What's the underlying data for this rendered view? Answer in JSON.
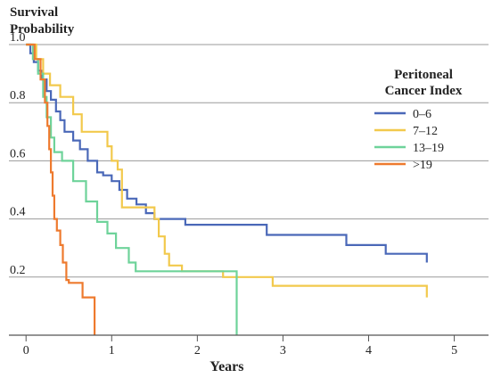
{
  "chart_data": {
    "type": "line",
    "step": true,
    "title_lines": [
      "Survival",
      "Probability"
    ],
    "xlabel": "Years",
    "ylabel": "",
    "xlim": [
      -0.2,
      5.4
    ],
    "ylim": [
      0,
      1.0
    ],
    "x_ticks": [
      0,
      1,
      2,
      3,
      4,
      5
    ],
    "x_tick_labels": [
      "0",
      "1",
      "2",
      "3",
      "4",
      "5"
    ],
    "y_ticks": [
      0.2,
      0.4,
      0.6,
      0.8,
      1.0
    ],
    "y_tick_labels": [
      "0.2",
      "0.4",
      "0.6",
      "0.8",
      "1.0"
    ],
    "grid": "horizontal",
    "legend": {
      "title_lines": [
        "Peritoneal",
        "Cancer Index"
      ],
      "placement": "right"
    },
    "series": [
      {
        "name": "0–6",
        "color": "#4a68b8",
        "x": [
          0,
          0.05,
          0.09,
          0.14,
          0.19,
          0.24,
          0.29,
          0.35,
          0.4,
          0.45,
          0.55,
          0.63,
          0.72,
          0.83,
          0.9,
          1.0,
          1.09,
          1.18,
          1.29,
          1.4,
          1.5,
          1.86,
          2.81,
          3.74,
          4.2,
          4.68
        ],
        "y": [
          1.0,
          0.97,
          0.94,
          0.91,
          0.88,
          0.84,
          0.81,
          0.77,
          0.74,
          0.7,
          0.67,
          0.64,
          0.6,
          0.56,
          0.55,
          0.53,
          0.5,
          0.47,
          0.45,
          0.42,
          0.4,
          0.38,
          0.345,
          0.31,
          0.28,
          0.25
        ]
      },
      {
        "name": "7–12",
        "color": "#f2c94c",
        "x": [
          0,
          0.12,
          0.2,
          0.28,
          0.4,
          0.55,
          0.65,
          0.95,
          1.0,
          1.07,
          1.12,
          1.5,
          1.55,
          1.62,
          1.67,
          1.82,
          2.3,
          2.88,
          4.68
        ],
        "y": [
          1.0,
          0.95,
          0.9,
          0.86,
          0.82,
          0.76,
          0.7,
          0.65,
          0.6,
          0.57,
          0.44,
          0.4,
          0.34,
          0.28,
          0.24,
          0.22,
          0.2,
          0.17,
          0.13
        ]
      },
      {
        "name": "13–19",
        "color": "#6ed39a",
        "x": [
          0,
          0.08,
          0.14,
          0.2,
          0.24,
          0.29,
          0.33,
          0.42,
          0.55,
          0.7,
          0.83,
          0.95,
          1.05,
          1.2,
          1.28,
          2.46
        ],
        "y": [
          1.0,
          0.95,
          0.9,
          0.82,
          0.75,
          0.68,
          0.63,
          0.6,
          0.53,
          0.46,
          0.39,
          0.35,
          0.3,
          0.25,
          0.22,
          0.0
        ]
      },
      {
        "name": ">19",
        "color": "#ee7a2e",
        "x": [
          0,
          0.1,
          0.17,
          0.22,
          0.25,
          0.27,
          0.29,
          0.31,
          0.33,
          0.36,
          0.4,
          0.43,
          0.47,
          0.5,
          0.66,
          0.8
        ],
        "y": [
          1.0,
          0.95,
          0.88,
          0.8,
          0.72,
          0.64,
          0.56,
          0.48,
          0.4,
          0.36,
          0.31,
          0.25,
          0.19,
          0.18,
          0.13,
          0.0
        ]
      }
    ]
  }
}
